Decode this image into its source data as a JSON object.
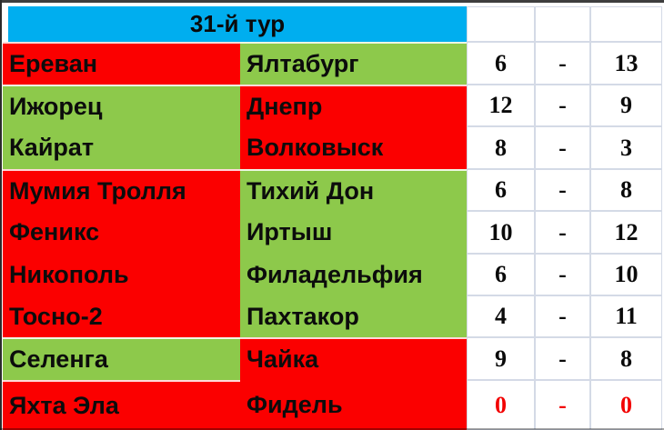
{
  "header": {
    "title": "31-й тур"
  },
  "colors": {
    "header_blue": "#00AEEF",
    "winner_green": "#8DC94B",
    "loser_red": "#FB0000",
    "grid_border": "#D4DAE6",
    "score_text": "#0A0A0A",
    "score_text_alert": "#F20000"
  },
  "rows": [
    {
      "home": "Ереван",
      "home_fill": "red",
      "away": "Ялтабург",
      "away_fill": "green",
      "score_home": "6",
      "dash": "-",
      "score_away": "13",
      "score_tone": "normal"
    },
    {
      "home": "Ижорец",
      "home_fill": "green",
      "away": "Днепр",
      "away_fill": "red",
      "score_home": "12",
      "dash": "-",
      "score_away": "9",
      "score_tone": "normal"
    },
    {
      "home": "Кайрат",
      "home_fill": "green",
      "away": "Волковыск",
      "away_fill": "red",
      "score_home": "8",
      "dash": "-",
      "score_away": "3",
      "score_tone": "normal"
    },
    {
      "home": "Мумия Тролля",
      "home_fill": "red",
      "away": "Тихий Дон",
      "away_fill": "green",
      "score_home": "6",
      "dash": "-",
      "score_away": "8",
      "score_tone": "normal"
    },
    {
      "home": "Феникс",
      "home_fill": "red",
      "away": "Иртыш",
      "away_fill": "green",
      "score_home": "10",
      "dash": "-",
      "score_away": "12",
      "score_tone": "normal"
    },
    {
      "home": "Никополь",
      "home_fill": "red",
      "away": "Филадельфия",
      "away_fill": "green",
      "score_home": "6",
      "dash": "-",
      "score_away": "10",
      "score_tone": "normal"
    },
    {
      "home": "Тосно-2",
      "home_fill": "red",
      "away": "Пахтакор",
      "away_fill": "green",
      "score_home": "4",
      "dash": "-",
      "score_away": "11",
      "score_tone": "normal"
    },
    {
      "home": "Селенга",
      "home_fill": "green",
      "away": "Чайка",
      "away_fill": "red",
      "score_home": "9",
      "dash": "-",
      "score_away": "8",
      "score_tone": "normal"
    },
    {
      "home": "Яхта Эла",
      "home_fill": "red",
      "away": "Фидель",
      "away_fill": "red",
      "score_home": "0",
      "dash": "-",
      "score_away": "0",
      "score_tone": "alert"
    }
  ]
}
